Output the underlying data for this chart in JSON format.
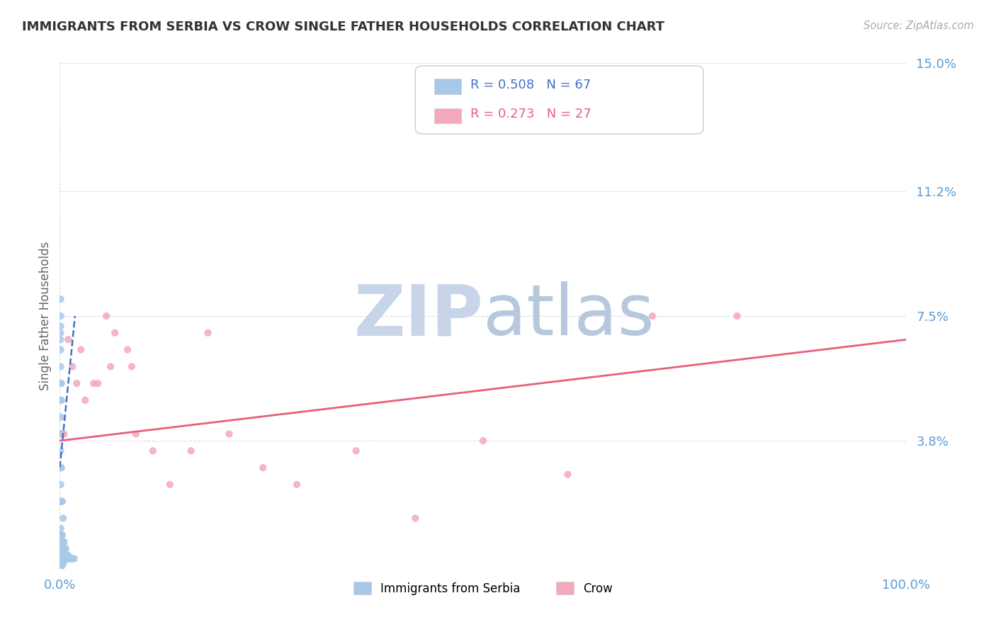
{
  "title": "IMMIGRANTS FROM SERBIA VS CROW SINGLE FATHER HOUSEHOLDS CORRELATION CHART",
  "source_text": "Source: ZipAtlas.com",
  "ylabel": "Single Father Households",
  "xlim": [
    0.0,
    1.0
  ],
  "ylim": [
    0.0,
    0.15
  ],
  "ytick_values": [
    0.0,
    0.038,
    0.075,
    0.112,
    0.15
  ],
  "ytick_labels": [
    "",
    "3.8%",
    "7.5%",
    "11.2%",
    "15.0%"
  ],
  "xtick_values": [
    0.0,
    1.0
  ],
  "xtick_labels": [
    "0.0%",
    "100.0%"
  ],
  "legend_entries": [
    {
      "R": "0.508",
      "N": "67",
      "color": "#a8c8e8"
    },
    {
      "R": "0.273",
      "N": "27",
      "color": "#f4a8bc"
    }
  ],
  "serbia_scatter_x": [
    0.001,
    0.001,
    0.001,
    0.001,
    0.001,
    0.001,
    0.001,
    0.001,
    0.001,
    0.001,
    0.001,
    0.001,
    0.001,
    0.001,
    0.001,
    0.001,
    0.001,
    0.001,
    0.001,
    0.001,
    0.001,
    0.001,
    0.001,
    0.001,
    0.001,
    0.001,
    0.001,
    0.001,
    0.001,
    0.001,
    0.002,
    0.002,
    0.002,
    0.002,
    0.002,
    0.002,
    0.002,
    0.002,
    0.002,
    0.002,
    0.003,
    0.003,
    0.003,
    0.003,
    0.003,
    0.003,
    0.003,
    0.004,
    0.004,
    0.004,
    0.004,
    0.004,
    0.005,
    0.005,
    0.005,
    0.006,
    0.006,
    0.007,
    0.007,
    0.008,
    0.009,
    0.01,
    0.011,
    0.012,
    0.013,
    0.015,
    0.017
  ],
  "serbia_scatter_y": [
    0.0,
    0.0,
    0.001,
    0.001,
    0.002,
    0.002,
    0.003,
    0.003,
    0.004,
    0.005,
    0.006,
    0.007,
    0.008,
    0.01,
    0.012,
    0.02,
    0.025,
    0.03,
    0.035,
    0.04,
    0.045,
    0.05,
    0.055,
    0.06,
    0.065,
    0.068,
    0.07,
    0.072,
    0.075,
    0.08,
    0.001,
    0.002,
    0.003,
    0.005,
    0.01,
    0.02,
    0.03,
    0.04,
    0.05,
    0.055,
    0.001,
    0.002,
    0.003,
    0.005,
    0.01,
    0.02,
    0.04,
    0.002,
    0.003,
    0.005,
    0.008,
    0.015,
    0.002,
    0.004,
    0.008,
    0.003,
    0.006,
    0.003,
    0.006,
    0.004,
    0.003,
    0.004,
    0.003,
    0.003,
    0.003,
    0.003,
    0.003
  ],
  "crow_scatter_x": [
    0.005,
    0.01,
    0.015,
    0.02,
    0.025,
    0.03,
    0.04,
    0.045,
    0.055,
    0.06,
    0.065,
    0.08,
    0.085,
    0.09,
    0.11,
    0.13,
    0.155,
    0.175,
    0.2,
    0.24,
    0.28,
    0.35,
    0.42,
    0.5,
    0.6,
    0.7,
    0.8
  ],
  "crow_scatter_y": [
    0.04,
    0.068,
    0.06,
    0.055,
    0.065,
    0.05,
    0.055,
    0.055,
    0.075,
    0.06,
    0.07,
    0.065,
    0.06,
    0.04,
    0.035,
    0.025,
    0.035,
    0.07,
    0.04,
    0.03,
    0.025,
    0.035,
    0.015,
    0.038,
    0.028,
    0.075,
    0.075
  ],
  "serbia_line_color": "#4472c4",
  "serbia_line_dashed": true,
  "crow_line_color": "#e8607a",
  "scatter_serbia_color": "#a8c8e8",
  "scatter_crow_color": "#f4a8bc",
  "watermark_zip": "ZIP",
  "watermark_atlas": "atlas",
  "watermark_zip_color": "#c8d4e8",
  "watermark_atlas_color": "#b8c8dc",
  "background_color": "#ffffff",
  "grid_color": "#d8dce8",
  "title_color": "#333333",
  "axis_color": "#5b9bd5",
  "ylabel_color": "#666666",
  "serbia_regression_slope": 2.5,
  "serbia_regression_intercept": 0.03,
  "crow_regression_slope": 0.03,
  "crow_regression_intercept": 0.038
}
